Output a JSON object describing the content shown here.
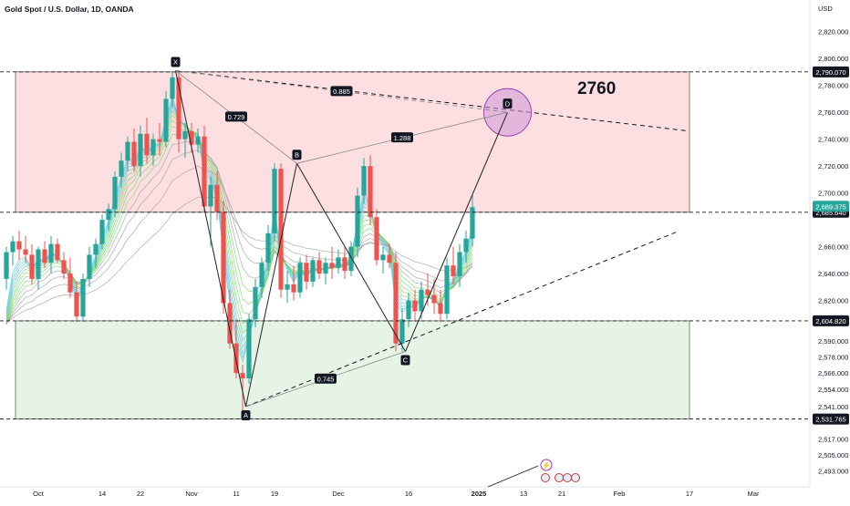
{
  "header": {
    "title": "Gold Spot / U.S. Dollar, 1D, OANDA",
    "currency": "USD",
    "big_label": "2760"
  },
  "colors": {
    "up": "#26a69a",
    "down": "#ef5350",
    "pattern_line": "#222222",
    "supply_zone": "rgba(242,54,69,0.16)",
    "demand_zone": "rgba(76,175,80,0.14)",
    "current_price_tag": "#26a69a",
    "target_circle": "rgba(206,147,216,0.55)",
    "ribbon_cool": "#5ec8d8",
    "ribbon_mid": "#76d36b",
    "ribbon_warm": "#9e9e9e"
  },
  "chart_data": {
    "type": "candlestick",
    "title": "Gold Spot / U.S. Dollar, 1D, OANDA",
    "y_unit": "USD",
    "ylim": [
      2484,
      2830
    ],
    "y_ticks": [
      {
        "value": 2820,
        "label": "2,820.000"
      },
      {
        "value": 2800,
        "label": "2,800.000"
      },
      {
        "value": 2780,
        "label": "2,780.000"
      },
      {
        "value": 2760,
        "label": "2,760.000"
      },
      {
        "value": 2740,
        "label": "2,740.000"
      },
      {
        "value": 2720,
        "label": "2,720.000"
      },
      {
        "value": 2700,
        "label": "2,700.000"
      },
      {
        "value": 2660,
        "label": "2,660.000"
      },
      {
        "value": 2640,
        "label": "2,640.000"
      },
      {
        "value": 2620,
        "label": "2,620.000"
      },
      {
        "value": 2590,
        "label": "2,590.000"
      },
      {
        "value": 2578,
        "label": "2,578.000"
      },
      {
        "value": 2566,
        "label": "2,566.000"
      },
      {
        "value": 2554,
        "label": "2,554.000"
      },
      {
        "value": 2541,
        "label": "2,541.000"
      },
      {
        "value": 2517,
        "label": "2,517.000"
      },
      {
        "value": 2505,
        "label": "2,505.000"
      },
      {
        "value": 2493,
        "label": "2,493.000"
      }
    ],
    "x_ticks": [
      {
        "i": 5,
        "label": "Oct"
      },
      {
        "i": 15,
        "label": "14"
      },
      {
        "i": 21,
        "label": "22"
      },
      {
        "i": 29,
        "label": "Nov"
      },
      {
        "i": 36,
        "label": "11"
      },
      {
        "i": 42,
        "label": "19"
      },
      {
        "i": 52,
        "label": "Dec"
      },
      {
        "i": 63,
        "label": "16"
      },
      {
        "i": 74,
        "label": "2025"
      },
      {
        "i": 81,
        "label": "13"
      },
      {
        "i": 87,
        "label": "21"
      },
      {
        "i": 96,
        "label": "Feb"
      },
      {
        "i": 107,
        "label": "17"
      },
      {
        "i": 117,
        "label": "Mar"
      }
    ],
    "bold_x_labels": [
      "2025"
    ],
    "candles": [
      {
        "o": 2636,
        "h": 2660,
        "l": 2628,
        "c": 2656
      },
      {
        "o": 2656,
        "h": 2668,
        "l": 2646,
        "c": 2664
      },
      {
        "o": 2664,
        "h": 2672,
        "l": 2650,
        "c": 2658
      },
      {
        "o": 2658,
        "h": 2668,
        "l": 2648,
        "c": 2654
      },
      {
        "o": 2654,
        "h": 2662,
        "l": 2632,
        "c": 2636
      },
      {
        "o": 2636,
        "h": 2660,
        "l": 2628,
        "c": 2658
      },
      {
        "o": 2658,
        "h": 2664,
        "l": 2644,
        "c": 2648
      },
      {
        "o": 2648,
        "h": 2668,
        "l": 2640,
        "c": 2662
      },
      {
        "o": 2662,
        "h": 2666,
        "l": 2648,
        "c": 2650
      },
      {
        "o": 2650,
        "h": 2656,
        "l": 2636,
        "c": 2640
      },
      {
        "o": 2640,
        "h": 2652,
        "l": 2622,
        "c": 2626
      },
      {
        "o": 2626,
        "h": 2634,
        "l": 2604,
        "c": 2608
      },
      {
        "o": 2608,
        "h": 2640,
        "l": 2604,
        "c": 2636
      },
      {
        "o": 2636,
        "h": 2660,
        "l": 2630,
        "c": 2654
      },
      {
        "o": 2654,
        "h": 2666,
        "l": 2644,
        "c": 2662
      },
      {
        "o": 2662,
        "h": 2684,
        "l": 2658,
        "c": 2680
      },
      {
        "o": 2680,
        "h": 2692,
        "l": 2672,
        "c": 2688
      },
      {
        "o": 2688,
        "h": 2716,
        "l": 2682,
        "c": 2712
      },
      {
        "o": 2712,
        "h": 2730,
        "l": 2704,
        "c": 2724
      },
      {
        "o": 2724,
        "h": 2742,
        "l": 2716,
        "c": 2738
      },
      {
        "o": 2738,
        "h": 2748,
        "l": 2716,
        "c": 2720
      },
      {
        "o": 2720,
        "h": 2750,
        "l": 2712,
        "c": 2744
      },
      {
        "o": 2744,
        "h": 2756,
        "l": 2722,
        "c": 2728
      },
      {
        "o": 2728,
        "h": 2744,
        "l": 2720,
        "c": 2740
      },
      {
        "o": 2740,
        "h": 2752,
        "l": 2728,
        "c": 2738
      },
      {
        "o": 2738,
        "h": 2776,
        "l": 2734,
        "c": 2770
      },
      {
        "o": 2770,
        "h": 2790,
        "l": 2764,
        "c": 2786
      },
      {
        "o": 2786,
        "h": 2790,
        "l": 2730,
        "c": 2740
      },
      {
        "o": 2740,
        "h": 2752,
        "l": 2726,
        "c": 2746
      },
      {
        "o": 2746,
        "h": 2752,
        "l": 2730,
        "c": 2736
      },
      {
        "o": 2736,
        "h": 2748,
        "l": 2730,
        "c": 2742
      },
      {
        "o": 2742,
        "h": 2750,
        "l": 2686,
        "c": 2690
      },
      {
        "o": 2690,
        "h": 2712,
        "l": 2660,
        "c": 2706
      },
      {
        "o": 2706,
        "h": 2716,
        "l": 2680,
        "c": 2686
      },
      {
        "o": 2686,
        "h": 2694,
        "l": 2610,
        "c": 2618
      },
      {
        "o": 2618,
        "h": 2628,
        "l": 2584,
        "c": 2588
      },
      {
        "o": 2588,
        "h": 2606,
        "l": 2562,
        "c": 2566
      },
      {
        "o": 2566,
        "h": 2572,
        "l": 2536,
        "c": 2562
      },
      {
        "o": 2562,
        "h": 2610,
        "l": 2558,
        "c": 2606
      },
      {
        "o": 2606,
        "h": 2636,
        "l": 2600,
        "c": 2630
      },
      {
        "o": 2630,
        "h": 2652,
        "l": 2622,
        "c": 2648
      },
      {
        "o": 2648,
        "h": 2676,
        "l": 2642,
        "c": 2670
      },
      {
        "o": 2670,
        "h": 2722,
        "l": 2664,
        "c": 2718
      },
      {
        "o": 2718,
        "h": 2722,
        "l": 2622,
        "c": 2628
      },
      {
        "o": 2628,
        "h": 2642,
        "l": 2618,
        "c": 2632
      },
      {
        "o": 2632,
        "h": 2646,
        "l": 2620,
        "c": 2626
      },
      {
        "o": 2626,
        "h": 2652,
        "l": 2622,
        "c": 2648
      },
      {
        "o": 2648,
        "h": 2654,
        "l": 2628,
        "c": 2634
      },
      {
        "o": 2634,
        "h": 2652,
        "l": 2630,
        "c": 2650
      },
      {
        "o": 2650,
        "h": 2656,
        "l": 2636,
        "c": 2640
      },
      {
        "o": 2640,
        "h": 2652,
        "l": 2632,
        "c": 2648
      },
      {
        "o": 2648,
        "h": 2660,
        "l": 2636,
        "c": 2644
      },
      {
        "o": 2644,
        "h": 2658,
        "l": 2640,
        "c": 2652
      },
      {
        "o": 2652,
        "h": 2660,
        "l": 2636,
        "c": 2642
      },
      {
        "o": 2642,
        "h": 2664,
        "l": 2638,
        "c": 2660
      },
      {
        "o": 2660,
        "h": 2704,
        "l": 2652,
        "c": 2698
      },
      {
        "o": 2698,
        "h": 2726,
        "l": 2692,
        "c": 2720
      },
      {
        "o": 2720,
        "h": 2728,
        "l": 2676,
        "c": 2682
      },
      {
        "o": 2682,
        "h": 2688,
        "l": 2646,
        "c": 2650
      },
      {
        "o": 2650,
        "h": 2660,
        "l": 2640,
        "c": 2654
      },
      {
        "o": 2654,
        "h": 2662,
        "l": 2644,
        "c": 2648
      },
      {
        "o": 2648,
        "h": 2656,
        "l": 2582,
        "c": 2588
      },
      {
        "o": 2588,
        "h": 2614,
        "l": 2582,
        "c": 2606
      },
      {
        "o": 2606,
        "h": 2626,
        "l": 2600,
        "c": 2620
      },
      {
        "o": 2620,
        "h": 2628,
        "l": 2604,
        "c": 2612
      },
      {
        "o": 2612,
        "h": 2634,
        "l": 2606,
        "c": 2628
      },
      {
        "o": 2628,
        "h": 2640,
        "l": 2616,
        "c": 2624
      },
      {
        "o": 2624,
        "h": 2636,
        "l": 2610,
        "c": 2618
      },
      {
        "o": 2618,
        "h": 2628,
        "l": 2604,
        "c": 2610
      },
      {
        "o": 2610,
        "h": 2652,
        "l": 2606,
        "c": 2646
      },
      {
        "o": 2646,
        "h": 2660,
        "l": 2632,
        "c": 2638
      },
      {
        "o": 2638,
        "h": 2662,
        "l": 2630,
        "c": 2656
      },
      {
        "o": 2656,
        "h": 2672,
        "l": 2648,
        "c": 2666
      },
      {
        "o": 2666,
        "h": 2698,
        "l": 2660,
        "c": 2689.375
      }
    ],
    "ribbons": {
      "count": 14,
      "fast_amp": 0.55,
      "slow_amp": 0.06
    },
    "zones": [
      {
        "name": "supply-zone",
        "from_i": 0,
        "to_i": 107,
        "top": 2790.07,
        "bottom": 2685.64
      },
      {
        "name": "demand-zone",
        "from_i": 0,
        "to_i": 107,
        "top": 2604.82,
        "bottom": 2531.765
      }
    ],
    "h_lines": [
      {
        "value": 2790.07,
        "label": "2,790.070",
        "from_i": 0
      },
      {
        "value": 2685.64,
        "label": "2,685.640",
        "from_i": 0
      },
      {
        "value": 2604.82,
        "label": "2,604.820",
        "from_i": 0
      },
      {
        "value": 2531.765,
        "label": "2,531.765",
        "from_i": 0
      }
    ],
    "current_price": {
      "value": 2689.375,
      "label": "2,689.375"
    },
    "harmonic_points": [
      {
        "name": "X",
        "i": 26.5,
        "price": 2791
      },
      {
        "name": "A",
        "i": 37.5,
        "price": 2541
      },
      {
        "name": "B",
        "i": 45.5,
        "price": 2722
      },
      {
        "name": "C",
        "i": 62.5,
        "price": 2582
      },
      {
        "name": "D",
        "i": 78.5,
        "price": 2760
      }
    ],
    "ratios": [
      {
        "label": "0.729",
        "from": "X",
        "to": "B"
      },
      {
        "label": "0.885",
        "from": "X",
        "to": "D"
      },
      {
        "label": "1.288",
        "from": "B",
        "to": "D"
      },
      {
        "label": "0.745",
        "from": "A",
        "to": "C"
      }
    ],
    "trend_lines": [
      {
        "name": "upper-dashed-trendline",
        "i1": 26.5,
        "p1": 2791,
        "i2": 107,
        "p2": 2746
      },
      {
        "name": "lower-dashed-trendline",
        "i1": 37.5,
        "p1": 2541,
        "i2": 105,
        "p2": 2671
      }
    ]
  }
}
